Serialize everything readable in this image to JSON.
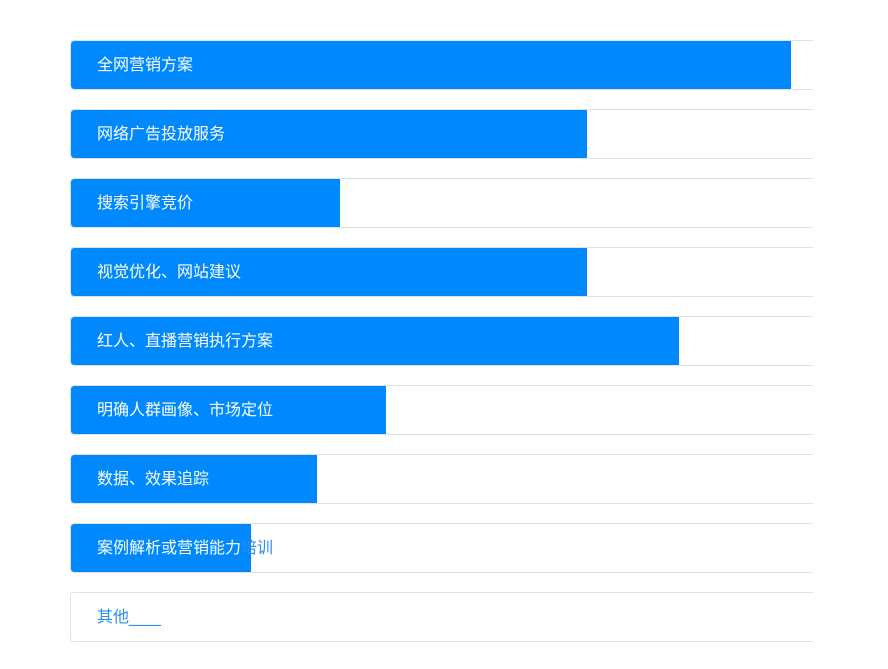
{
  "options": [
    {
      "label": "全网营销方案",
      "progress": 97.0
    },
    {
      "label": "网络广告投放服务",
      "progress": 69.6
    },
    {
      "label": "搜索引擎竞价",
      "progress": 36.3
    },
    {
      "label": "视觉优化、网站建议",
      "progress": 69.6
    },
    {
      "label": "红人、直播营销执行方案",
      "progress": 82.0
    },
    {
      "label": "明确人群画像、市场定位",
      "progress": 42.5
    },
    {
      "label": "数据、效果追踪",
      "progress": 33.1
    },
    {
      "label": "案例解析或营销能力培训",
      "progress": 24.3
    },
    {
      "label": "其他____",
      "progress": 0
    }
  ],
  "colors": {
    "fill": "#0089ff",
    "border": "#dfe3e8",
    "text_on_fill": "#ffffff",
    "text": "#2d8cf0"
  }
}
